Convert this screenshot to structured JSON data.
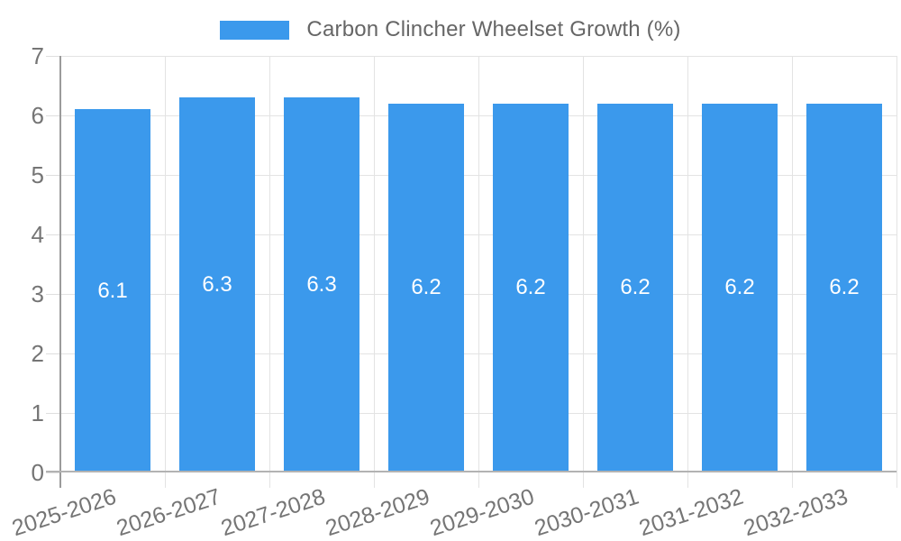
{
  "legend": {
    "label": "Carbon Clincher Wheelset Growth (%)",
    "swatch_color": "#3b99ec"
  },
  "chart_data": {
    "type": "bar",
    "title": "Carbon Clincher Wheelset Growth (%)",
    "categories": [
      "2025-2026",
      "2026-2027",
      "2027-2028",
      "2028-2029",
      "2029-2030",
      "2030-2031",
      "2031-2032",
      "2032-2033"
    ],
    "values": [
      6.1,
      6.3,
      6.3,
      6.2,
      6.2,
      6.2,
      6.2,
      6.2
    ],
    "bar_value_labels": [
      "6.1",
      "6.3",
      "6.3",
      "6.2",
      "6.2",
      "6.2",
      "6.2",
      "6.2"
    ],
    "xlabel": "",
    "ylabel": "",
    "ylim": [
      0,
      7
    ],
    "yticks": [
      0,
      1,
      2,
      3,
      4,
      5,
      6,
      7
    ],
    "grid": true,
    "legend_position": "top-center",
    "bar_color": "#3b99ec",
    "bar_label_color": "#ffffff",
    "grid_color": "#e3e3e3",
    "axis_line_color": "#9b9b9b",
    "tick_label_color": "#757575"
  }
}
